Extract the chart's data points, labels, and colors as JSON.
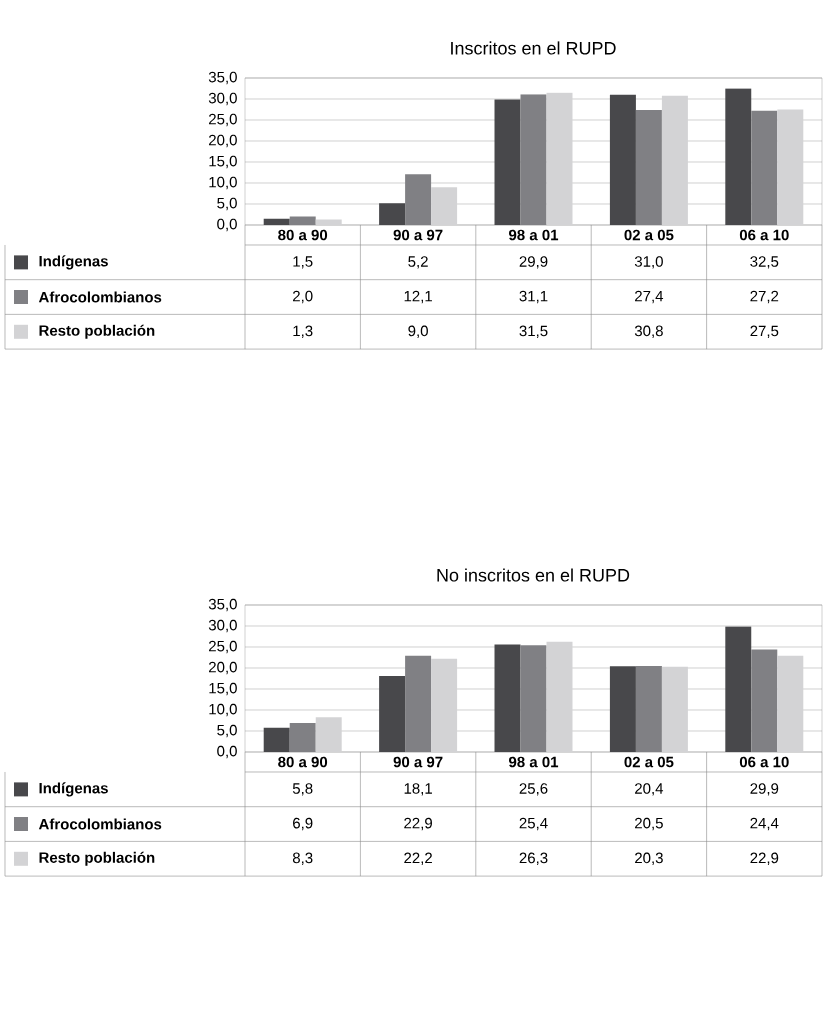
{
  "chart_data": [
    {
      "type": "bar",
      "title": "Inscritos en el RUPD",
      "categories": [
        "80 a 90",
        "90 a 97",
        "98 a 01",
        "02 a 05",
        "06 a 10"
      ],
      "series": [
        {
          "name": "Indígenas",
          "color": "#48484b",
          "values": [
            1.5,
            5.2,
            29.9,
            31.0,
            32.5
          ],
          "value_labels": [
            "1,5",
            "5,2",
            "29,9",
            "31,0",
            "32,5"
          ]
        },
        {
          "name": "Afrocolombianos",
          "color": "#808084",
          "values": [
            2.0,
            12.1,
            31.1,
            27.4,
            27.2
          ],
          "value_labels": [
            "2,0",
            "12,1",
            "31,1",
            "27,4",
            "27,2"
          ]
        },
        {
          "name": "Resto población",
          "color": "#d3d3d5",
          "values": [
            1.3,
            9.0,
            31.5,
            30.8,
            27.5
          ],
          "value_labels": [
            "1,3",
            "9,0",
            "31,5",
            "30,8",
            "27,5"
          ]
        }
      ],
      "ylim": [
        0,
        35
      ],
      "yticks": [
        {
          "value": 0,
          "label": "0,0"
        },
        {
          "value": 5,
          "label": "5,0"
        },
        {
          "value": 10,
          "label": "10,0"
        },
        {
          "value": 15,
          "label": "15,0"
        },
        {
          "value": 20,
          "label": "20,0"
        },
        {
          "value": 25,
          "label": "25,0"
        },
        {
          "value": 30,
          "label": "30,0"
        },
        {
          "value": 35,
          "label": "35,0"
        }
      ],
      "grid": "y",
      "legend": "bottom"
    },
    {
      "type": "bar",
      "title": "No inscritos en el RUPD",
      "categories": [
        "80 a 90",
        "90 a 97",
        "98 a 01",
        "02 a 05",
        "06 a 10"
      ],
      "series": [
        {
          "name": "Indígenas",
          "color": "#48484b",
          "values": [
            5.8,
            18.1,
            25.6,
            20.4,
            29.9
          ],
          "value_labels": [
            "5,8",
            "18,1",
            "25,6",
            "20,4",
            "29,9"
          ]
        },
        {
          "name": "Afrocolombianos",
          "color": "#808084",
          "values": [
            6.9,
            22.9,
            25.4,
            20.5,
            24.4
          ],
          "value_labels": [
            "6,9",
            "22,9",
            "25,4",
            "20,5",
            "24,4"
          ]
        },
        {
          "name": "Resto población",
          "color": "#d3d3d5",
          "values": [
            8.3,
            22.2,
            26.3,
            20.3,
            22.9
          ],
          "value_labels": [
            "8,3",
            "22,2",
            "26,3",
            "20,3",
            "22,9"
          ]
        }
      ],
      "ylim": [
        0,
        35
      ],
      "yticks": [
        {
          "value": 0,
          "label": "0,0"
        },
        {
          "value": 5,
          "label": "5,0"
        },
        {
          "value": 10,
          "label": "10,0"
        },
        {
          "value": 15,
          "label": "15,0"
        },
        {
          "value": 20,
          "label": "20,0"
        },
        {
          "value": 25,
          "label": "25,0"
        },
        {
          "value": 30,
          "label": "30,0"
        },
        {
          "value": 35,
          "label": "35,0"
        }
      ],
      "grid": "y",
      "legend": "bottom"
    }
  ]
}
